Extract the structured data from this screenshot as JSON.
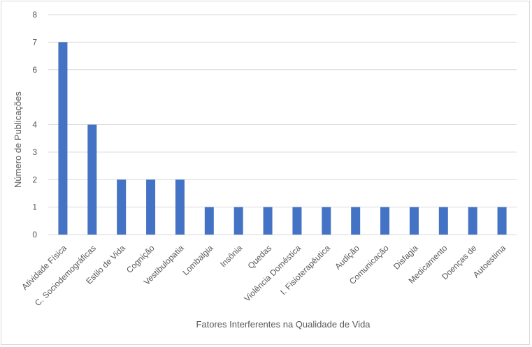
{
  "chart_data": {
    "type": "bar",
    "title": "",
    "xlabel": "Fatores Interferentes na Qualidade de Vida",
    "ylabel": "Número de Publicações",
    "categories": [
      "Atividade Física",
      "C. Sociodemográficas",
      "Estilo de Vida",
      "Cognição",
      "Vestibulopatia",
      "Lombalgia",
      "Insônia",
      "Quedas",
      "Violência Doméstica",
      "I. Fisioterapêutica",
      "Audição",
      "Comunicação",
      "Disfagia",
      "Medicamento",
      "Doenças de",
      "Autoestima"
    ],
    "values": [
      7,
      4,
      2,
      2,
      2,
      1,
      1,
      1,
      1,
      1,
      1,
      1,
      1,
      1,
      1,
      1
    ],
    "yticks": [
      0,
      1,
      2,
      3,
      4,
      6,
      7,
      8
    ],
    "grid": true,
    "legend": "none",
    "colors": {
      "bar": "#4472c4",
      "grid": "#d9d9d9",
      "text": "#595959"
    }
  }
}
